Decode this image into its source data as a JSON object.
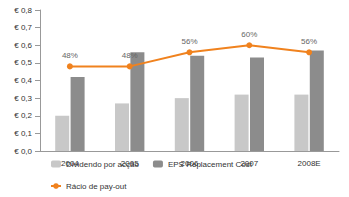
{
  "chart_data": {
    "type": "bar",
    "categories": [
      "2004",
      "2005",
      "2006",
      "2007",
      "2008E"
    ],
    "series": [
      {
        "name": "Dividendo por acção",
        "type": "bar",
        "color": "#c8c8c8",
        "values": [
          0.2,
          0.27,
          0.3,
          0.32,
          0.32
        ]
      },
      {
        "name": "EPS Replacement Cost",
        "type": "bar",
        "color": "#8c8c8c",
        "values": [
          0.42,
          0.56,
          0.54,
          0.53,
          0.57
        ]
      },
      {
        "name": "Rácio de pay-out",
        "type": "line",
        "axis": "y2",
        "color": "#f0821e",
        "marker": "circle",
        "data_labels": true,
        "values": [
          48,
          48,
          56,
          60,
          56
        ],
        "value_labels": [
          "48%",
          "48%",
          "56%",
          "60%",
          "56%"
        ]
      }
    ],
    "ylim": [
      0,
      0.8
    ],
    "yticks": [
      {
        "value": 0,
        "label": "€ 0,0"
      },
      {
        "value": 0.1,
        "label": "€ 0,1"
      },
      {
        "value": 0.2,
        "label": "€ 0,2"
      },
      {
        "value": 0.3,
        "label": "€ 0,3"
      },
      {
        "value": 0.4,
        "label": "€ 0,4"
      },
      {
        "value": 0.5,
        "label": "€ 0,5"
      },
      {
        "value": 0.6,
        "label": "€ 0,6"
      },
      {
        "value": 0.7,
        "label": "€ 0,7"
      },
      {
        "value": 0.8,
        "label": "€ 0,8"
      }
    ],
    "y2lim": [
      0,
      80
    ],
    "grid": false,
    "legend": "bottom"
  }
}
